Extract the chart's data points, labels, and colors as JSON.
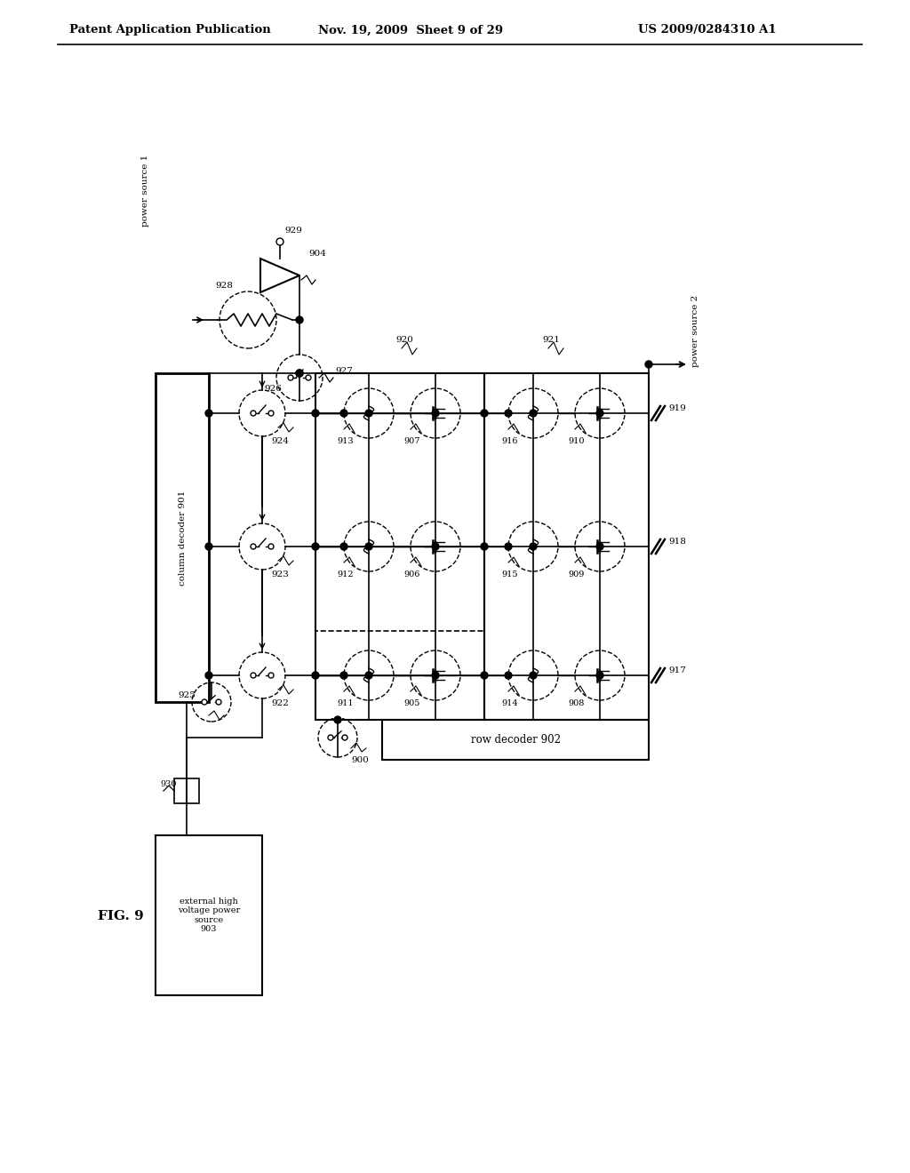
{
  "background": "#ffffff",
  "header_left": "Patent Application Publication",
  "header_center": "Nov. 19, 2009  Sheet 9 of 29",
  "header_right": "US 2009/0284310 A1",
  "fig_label": "FIG. 9",
  "col_decoder_label": "column decoder 901",
  "row_decoder_label": "row decoder 902",
  "ext_hv_label": "external high\nvoltage power\nsource\n903",
  "power1_label": "power source 1",
  "power2_label": "power source 2"
}
